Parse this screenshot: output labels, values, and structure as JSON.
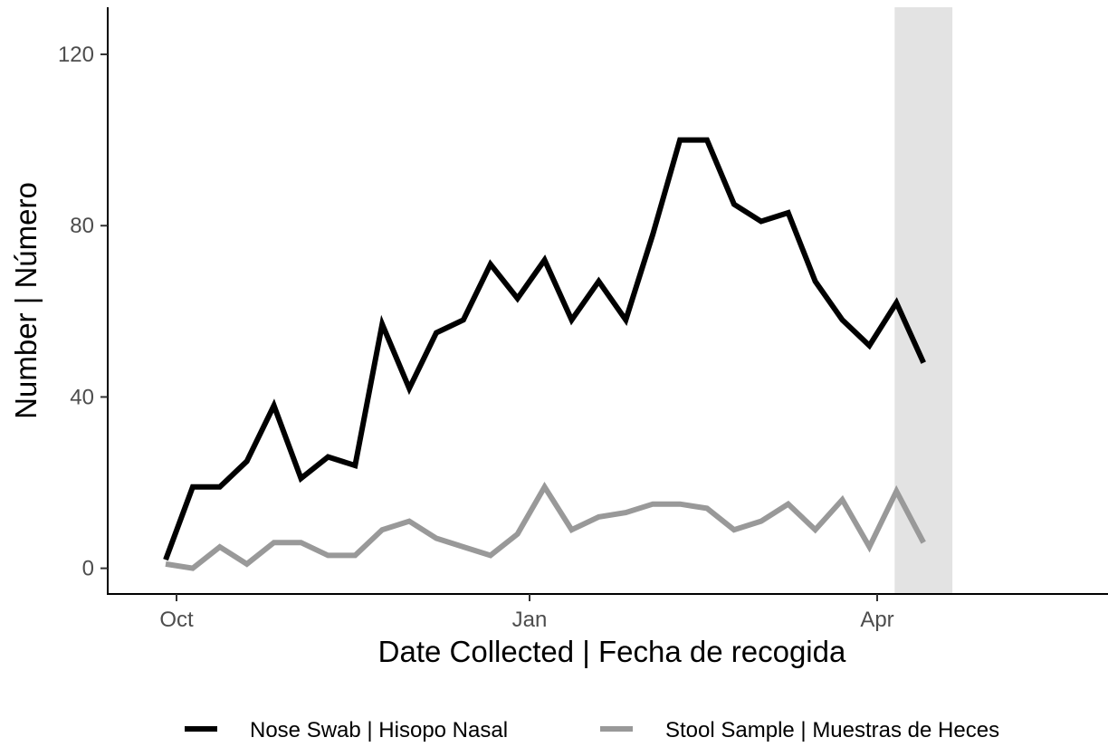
{
  "chart_data": {
    "type": "line",
    "xlabel": "Date Collected | Fecha de recogida",
    "ylabel": "Number | Número",
    "x_ticks": [
      "Oct",
      "Jan",
      "Apr"
    ],
    "y_ticks": [
      0,
      40,
      80,
      120
    ],
    "ylim": [
      -6,
      131
    ],
    "x_unit": "weeks",
    "shaded_region": {
      "x_start": 27,
      "x_end": 29,
      "color": "#e3e3e3"
    },
    "grid": false,
    "legend_position": "bottom",
    "x": [
      0,
      1,
      2,
      3,
      4,
      5,
      6,
      7,
      8,
      9,
      10,
      11,
      12,
      13,
      14,
      15,
      16,
      17,
      18,
      19,
      20,
      21,
      22,
      23,
      24,
      25,
      26,
      27,
      28
    ],
    "series": [
      {
        "name": "Nose Swab | Hisopo Nasal",
        "color": "#000000",
        "values": [
          2,
          19,
          19,
          25,
          38,
          21,
          26,
          24,
          57,
          42,
          55,
          58,
          71,
          63,
          72,
          58,
          67,
          58,
          78,
          100,
          100,
          85,
          81,
          83,
          67,
          58,
          52,
          62,
          48
        ]
      },
      {
        "name": "Stool Sample | Muestras de Heces",
        "color": "#999999",
        "values": [
          1,
          0,
          5,
          1,
          6,
          6,
          3,
          3,
          9,
          11,
          7,
          5,
          3,
          8,
          19,
          9,
          12,
          13,
          15,
          15,
          14,
          9,
          11,
          15,
          9,
          16,
          5,
          18,
          6
        ]
      }
    ]
  }
}
